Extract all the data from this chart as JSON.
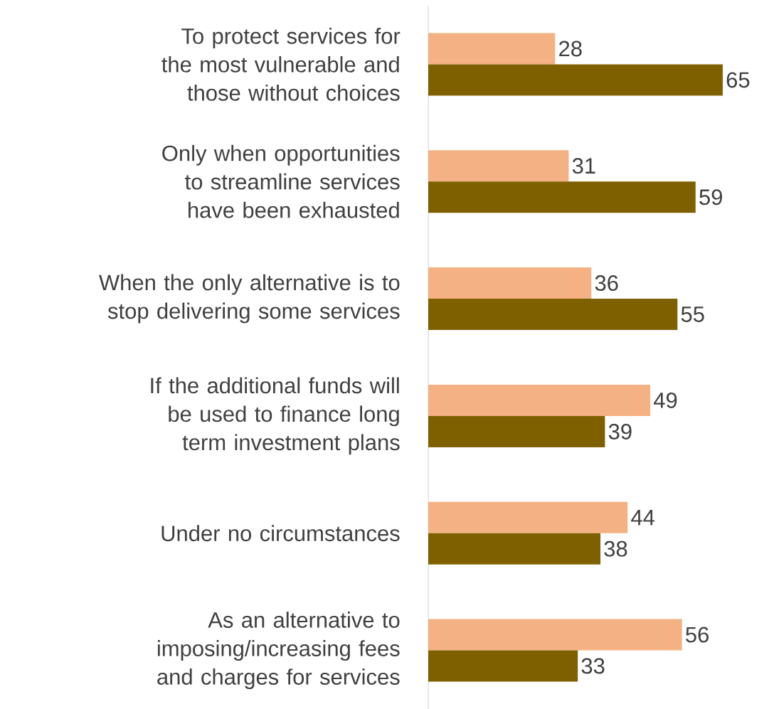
{
  "chart_data": {
    "type": "bar",
    "orientation": "horizontal",
    "categories": [
      "To protect services for the most vulnerable and those without choices",
      "Only when opportunities to streamline services have been exhausted",
      "When the only alternative is to stop delivering some services",
      "If the additional funds will be used to finance long term investment plans",
      "Under no circumstances",
      "As an alternative to imposing/increasing fees and charges for services"
    ],
    "series": [
      {
        "color": "#f4b183",
        "values": [
          28,
          31,
          36,
          49,
          44,
          56
        ]
      },
      {
        "color": "#7f6000",
        "values": [
          65,
          59,
          55,
          39,
          38,
          33
        ]
      }
    ],
    "data_labels": true
  }
}
